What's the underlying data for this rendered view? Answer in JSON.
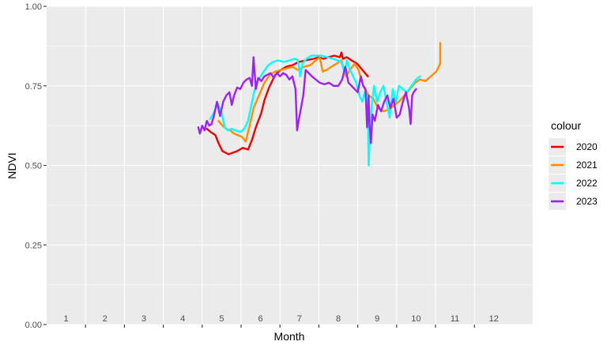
{
  "chart_data": {
    "type": "line",
    "xlabel": "Month",
    "ylabel": "NDVI",
    "xlim": [
      0.5,
      13
    ],
    "ylim": [
      0,
      1
    ],
    "y_ticks": [
      "0.00",
      "0.25",
      "0.50",
      "0.75",
      "1.00"
    ],
    "x_ticks": [
      "1",
      "2",
      "3",
      "4",
      "5",
      "6",
      "7",
      "8",
      "9",
      "10",
      "11",
      "12"
    ],
    "x_tick_label_values": [
      1,
      2,
      3,
      4,
      5,
      6,
      7,
      8,
      9,
      10,
      11,
      12
    ],
    "grid": true,
    "legend": {
      "title": "colour",
      "position": "right"
    },
    "series": [
      {
        "name": "2020",
        "color": "#ee0000",
        "x": [
          4.62,
          4.72,
          4.84,
          4.92,
          5.02,
          5.18,
          5.4,
          5.54,
          5.68,
          5.78,
          5.88,
          6.02,
          6.1,
          6.22,
          6.38,
          6.52,
          6.66,
          6.82,
          6.98,
          7.16,
          7.36,
          7.5,
          7.62,
          7.74,
          7.9,
          8.04,
          8.08,
          8.12,
          8.22,
          8.34,
          8.48,
          8.62,
          8.76
        ],
        "y": [
          0.615,
          0.605,
          0.595,
          0.57,
          0.545,
          0.535,
          0.545,
          0.555,
          0.55,
          0.58,
          0.62,
          0.665,
          0.705,
          0.745,
          0.785,
          0.8,
          0.81,
          0.815,
          0.825,
          0.83,
          0.835,
          0.84,
          0.835,
          0.84,
          0.845,
          0.84,
          0.855,
          0.835,
          0.84,
          0.83,
          0.82,
          0.8,
          0.78
        ]
      },
      {
        "name": "2021",
        "color": "#ff8c00",
        "x": [
          4.92,
          5.02,
          5.12,
          5.22,
          5.32,
          5.42,
          5.52,
          5.62,
          5.72,
          5.82,
          5.96,
          6.1,
          6.24,
          6.38,
          6.52,
          6.68,
          6.82,
          6.96,
          7.12,
          7.28,
          7.42,
          7.52,
          7.6,
          7.7,
          7.82,
          7.96,
          8.08,
          8.2,
          8.3,
          8.42,
          8.52,
          8.64,
          8.78,
          8.9,
          9.02,
          9.16,
          9.3,
          9.44,
          9.56,
          9.7,
          9.84,
          9.98,
          10.1,
          10.24,
          10.38,
          10.52,
          10.62,
          10.62
        ],
        "y": [
          0.64,
          0.625,
          0.615,
          0.61,
          0.6,
          0.595,
          0.59,
          0.575,
          0.625,
          0.68,
          0.72,
          0.76,
          0.785,
          0.795,
          0.8,
          0.805,
          0.81,
          0.8,
          0.81,
          0.815,
          0.83,
          0.84,
          0.795,
          0.8,
          0.81,
          0.82,
          0.83,
          0.78,
          0.8,
          0.82,
          0.8,
          0.75,
          0.72,
          0.71,
          0.68,
          0.67,
          0.675,
          0.69,
          0.7,
          0.72,
          0.74,
          0.76,
          0.77,
          0.765,
          0.78,
          0.795,
          0.82,
          0.885
        ]
      },
      {
        "name": "2022",
        "color": "#00ffff",
        "x": [
          4.7,
          4.8,
          4.9,
          5.0,
          5.08,
          5.16,
          5.26,
          5.36,
          5.48,
          5.58,
          5.68,
          5.78,
          5.88,
          5.98,
          6.08,
          6.2,
          6.32,
          6.46,
          6.6,
          6.74,
          6.88,
          6.96,
          7.02,
          7.08,
          7.18,
          7.3,
          7.44,
          7.58,
          7.72,
          7.86,
          7.98,
          8.08,
          8.16,
          8.22,
          8.3,
          8.38,
          8.46,
          8.54,
          8.62,
          8.7,
          8.76,
          8.78,
          8.82,
          8.86,
          8.92,
          9.0,
          9.08,
          9.16,
          9.24,
          9.32,
          9.4,
          9.48,
          9.56,
          9.66,
          9.76,
          9.88,
          10.0,
          10.1
        ],
        "y": [
          0.645,
          0.665,
          0.695,
          0.665,
          0.62,
          0.61,
          0.615,
          0.61,
          0.605,
          0.615,
          0.64,
          0.7,
          0.755,
          0.775,
          0.795,
          0.815,
          0.825,
          0.83,
          0.825,
          0.83,
          0.835,
          0.83,
          0.78,
          0.82,
          0.835,
          0.845,
          0.845,
          0.845,
          0.84,
          0.835,
          0.83,
          0.825,
          0.79,
          0.83,
          0.8,
          0.78,
          0.76,
          0.72,
          0.7,
          0.74,
          0.68,
          0.5,
          0.62,
          0.69,
          0.75,
          0.7,
          0.73,
          0.75,
          0.7,
          0.65,
          0.74,
          0.7,
          0.75,
          0.74,
          0.73,
          0.75,
          0.77,
          0.78
        ]
      },
      {
        "name": "2023",
        "color": "#a020f0",
        "x": [
          4.4,
          4.44,
          4.5,
          4.56,
          4.62,
          4.68,
          4.74,
          4.8,
          4.88,
          4.96,
          5.04,
          5.12,
          5.2,
          5.26,
          5.32,
          5.4,
          5.48,
          5.56,
          5.64,
          5.72,
          5.78,
          5.82,
          5.88,
          5.94,
          6.02,
          6.1,
          6.18,
          6.26,
          6.34,
          6.42,
          6.5,
          6.58,
          6.66,
          6.74,
          6.82,
          6.9,
          6.94,
          6.98,
          7.04,
          7.1,
          7.16,
          7.24,
          7.32,
          7.42,
          7.52,
          7.64,
          7.76,
          7.88,
          8.0,
          8.1,
          8.18,
          8.26,
          8.34,
          8.42,
          8.5,
          8.58,
          8.64,
          8.7,
          8.74,
          8.78,
          8.8,
          8.84,
          8.88,
          8.94,
          9.02,
          9.1,
          9.18,
          9.26,
          9.34,
          9.42,
          9.5,
          9.58,
          9.66,
          9.74,
          9.82,
          9.86,
          9.9,
          9.94,
          10.0
        ],
        "y": [
          0.62,
          0.6,
          0.625,
          0.61,
          0.64,
          0.625,
          0.63,
          0.655,
          0.7,
          0.655,
          0.7,
          0.72,
          0.73,
          0.69,
          0.72,
          0.745,
          0.74,
          0.76,
          0.77,
          0.775,
          0.75,
          0.84,
          0.74,
          0.775,
          0.765,
          0.78,
          0.785,
          0.79,
          0.775,
          0.79,
          0.78,
          0.79,
          0.785,
          0.77,
          0.78,
          0.74,
          0.61,
          0.64,
          0.68,
          0.72,
          0.8,
          0.79,
          0.78,
          0.77,
          0.76,
          0.755,
          0.76,
          0.75,
          0.75,
          0.77,
          0.81,
          0.76,
          0.75,
          0.74,
          0.73,
          0.78,
          0.75,
          0.74,
          0.62,
          0.72,
          0.63,
          0.57,
          0.66,
          0.64,
          0.69,
          0.67,
          0.7,
          0.72,
          0.68,
          0.71,
          0.65,
          0.66,
          0.7,
          0.73,
          0.68,
          0.63,
          0.72,
          0.73,
          0.74
        ]
      }
    ]
  }
}
